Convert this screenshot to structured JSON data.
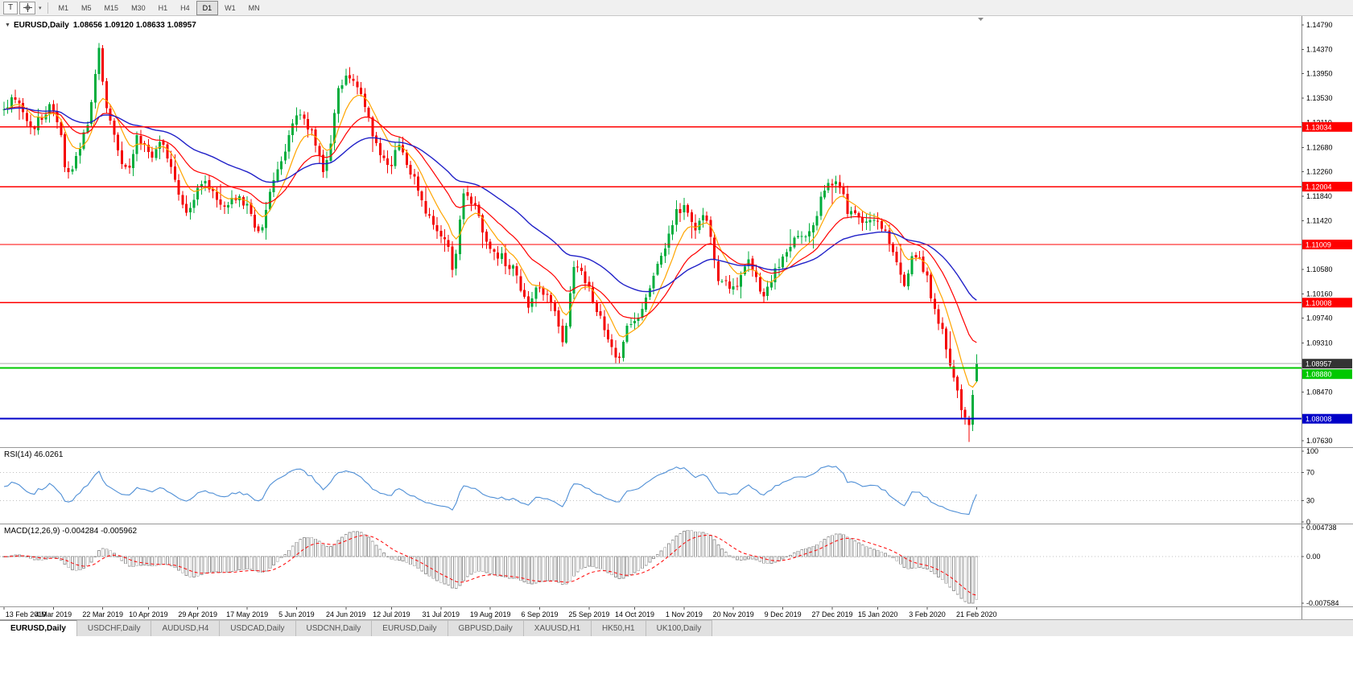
{
  "colors": {
    "up": "#00AD3C",
    "down": "#F40000",
    "current_line": "#ABABAB",
    "current_box": "#333333",
    "axis_text": "#000000"
  },
  "toolbar": {
    "tool_button_label": "T",
    "cursor_dropdown_icon": "▾",
    "timeframes": [
      "M1",
      "M5",
      "M15",
      "M30",
      "H1",
      "H4",
      "D1",
      "W1",
      "MN"
    ],
    "active_timeframe": "D1"
  },
  "chart": {
    "collapse_icon": "▼",
    "symbol": "EURUSD,Daily",
    "ohlc_text": "1.08656 1.09120 1.08633 1.08957"
  },
  "chart_data": {
    "type": "candlestick",
    "symbol": "EURUSD",
    "period": "Daily",
    "visible_price_range": [
      1.07519,
      1.14942
    ],
    "price_ticks": [
      "1.14790",
      "1.14370",
      "1.13950",
      "1.13530",
      "1.13110",
      "1.12680",
      "1.12260",
      "1.11840",
      "1.11420",
      "1.10580",
      "1.10160",
      "1.09740",
      "1.09310",
      "1.08470",
      "1.07630"
    ],
    "hlines": [
      {
        "price": 1.13034,
        "label": "1.13034",
        "color": "#FF0000",
        "width": 1.4
      },
      {
        "price": 1.12004,
        "label": "1.12004",
        "color": "#FF0000",
        "width": 1.4
      },
      {
        "price": 1.11009,
        "label": "1.11009",
        "color": "#FF0000",
        "width": 1.4
      },
      {
        "price": 1.10008,
        "label": "1.10008",
        "color": "#FF0000",
        "width": 1.4
      },
      {
        "price": 1.0888,
        "label": "1.08880",
        "color": "#00C800",
        "width": 2
      },
      {
        "price": 1.08008,
        "label": "1.08008",
        "color": "#0000C8",
        "width": 2
      }
    ],
    "current_price": {
      "value": 1.08957,
      "label": "1.08957"
    },
    "last_candle": {
      "open": 1.08656,
      "high": 1.0912,
      "low": 1.08633,
      "close": 1.08957
    },
    "num_candles": 257,
    "seed": 42,
    "close_anchors": [
      [
        0.0,
        1.1332
      ],
      [
        0.012,
        1.136
      ],
      [
        0.03,
        1.13
      ],
      [
        0.048,
        1.1345
      ],
      [
        0.058,
        1.13
      ],
      [
        0.064,
        1.1205
      ],
      [
        0.075,
        1.126
      ],
      [
        0.088,
        1.132
      ],
      [
        0.097,
        1.144
      ],
      [
        0.105,
        1.1345
      ],
      [
        0.118,
        1.125
      ],
      [
        0.128,
        1.1222
      ],
      [
        0.138,
        1.129
      ],
      [
        0.152,
        1.1255
      ],
      [
        0.163,
        1.1285
      ],
      [
        0.175,
        1.1215
      ],
      [
        0.19,
        1.115
      ],
      [
        0.205,
        1.1215
      ],
      [
        0.222,
        1.117
      ],
      [
        0.243,
        1.1185
      ],
      [
        0.263,
        1.112
      ],
      [
        0.282,
        1.1235
      ],
      [
        0.304,
        1.1335
      ],
      [
        0.318,
        1.1285
      ],
      [
        0.33,
        1.1215
      ],
      [
        0.344,
        1.137
      ],
      [
        0.353,
        1.1398
      ],
      [
        0.365,
        1.1365
      ],
      [
        0.382,
        1.128
      ],
      [
        0.396,
        1.1228
      ],
      [
        0.405,
        1.1268
      ],
      [
        0.42,
        1.1218
      ],
      [
        0.438,
        1.1145
      ],
      [
        0.455,
        1.1108
      ],
      [
        0.462,
        1.1048
      ],
      [
        0.472,
        1.1195
      ],
      [
        0.486,
        1.1168
      ],
      [
        0.497,
        1.1098
      ],
      [
        0.512,
        1.1078
      ],
      [
        0.526,
        1.1058
      ],
      [
        0.537,
        1.0992
      ],
      [
        0.547,
        1.1032
      ],
      [
        0.562,
        1.1
      ],
      [
        0.576,
        1.0932
      ],
      [
        0.585,
        1.1065
      ],
      [
        0.597,
        1.104
      ],
      [
        0.61,
        1.0988
      ],
      [
        0.622,
        1.0938
      ],
      [
        0.63,
        1.0895
      ],
      [
        0.641,
        1.0962
      ],
      [
        0.655,
        1.0985
      ],
      [
        0.668,
        1.1042
      ],
      [
        0.69,
        1.1152
      ],
      [
        0.701,
        1.1165
      ],
      [
        0.712,
        1.1128
      ],
      [
        0.722,
        1.1152
      ],
      [
        0.736,
        1.1032
      ],
      [
        0.752,
        1.1028
      ],
      [
        0.766,
        1.1078
      ],
      [
        0.78,
        1.1012
      ],
      [
        0.795,
        1.1062
      ],
      [
        0.81,
        1.1102
      ],
      [
        0.828,
        1.1122
      ],
      [
        0.845,
        1.1198
      ],
      [
        0.856,
        1.1218
      ],
      [
        0.868,
        1.1155
      ],
      [
        0.882,
        1.1138
      ],
      [
        0.896,
        1.1148
      ],
      [
        0.912,
        1.1098
      ],
      [
        0.926,
        1.1022
      ],
      [
        0.936,
        1.1088
      ],
      [
        0.946,
        1.1058
      ],
      [
        0.956,
        1.0998
      ],
      [
        0.966,
        1.0948
      ],
      [
        0.976,
        1.0878
      ],
      [
        0.986,
        1.0798
      ],
      [
        0.993,
        1.0788
      ],
      [
        0.997,
        1.0852
      ],
      [
        1.0,
        1.0896
      ]
    ],
    "moving_averages": [
      {
        "name": "ma-fast",
        "period": 8,
        "color": "#FFA500"
      },
      {
        "name": "ma-mid",
        "period": 20,
        "color": "#FF0000"
      },
      {
        "name": "ma-slow",
        "period": 45,
        "color": "#2121C8"
      }
    ],
    "dates": [
      "13 Feb 2019",
      "4 Mar 2019",
      "22 Mar 2019",
      "10 Apr 2019",
      "29 Apr 2019",
      "17 May 2019",
      "5 Jun 2019",
      "24 Jun 2019",
      "12 Jul 2019",
      "31 Jul 2019",
      "19 Aug 2019",
      "6 Sep 2019",
      "25 Sep 2019",
      "14 Oct 2019",
      "1 Nov 2019",
      "20 Nov 2019",
      "9 Dec 2019",
      "27 Dec 2019",
      "15 Jan 2020",
      "3 Feb 2020",
      "21 Feb 2020"
    ],
    "indicators": {
      "rsi": {
        "label": "RSI(14) 46.0261",
        "period": 14,
        "value": "46.0261",
        "axis_labels": [
          "100",
          "70",
          "30",
          "0"
        ],
        "axis_values": [
          100,
          70,
          30,
          0
        ],
        "levels": [
          70,
          30
        ],
        "color": "#4F8FD6"
      },
      "macd": {
        "label": "MACD(12,26,9) -0.004284 -0.005962",
        "params": "12,26,9",
        "macd_value": "-0.004284",
        "signal_value": "-0.005962",
        "axis_labels": [
          "0.004738",
          "0.00",
          "-0.007584"
        ],
        "axis_values": [
          0.004738,
          0,
          -0.007584
        ],
        "hist_color": "#999999",
        "signal_color": "#FF0000"
      }
    }
  },
  "tabs": {
    "active_index": 0,
    "items": [
      "EURUSD,Daily",
      "USDCHF,Daily",
      "AUDUSD,H4",
      "USDCAD,Daily",
      "USDCNH,Daily",
      "EURUSD,Daily",
      "GBPUSD,Daily",
      "XAUUSD,H1",
      "HK50,H1",
      "UK100,Daily"
    ]
  }
}
